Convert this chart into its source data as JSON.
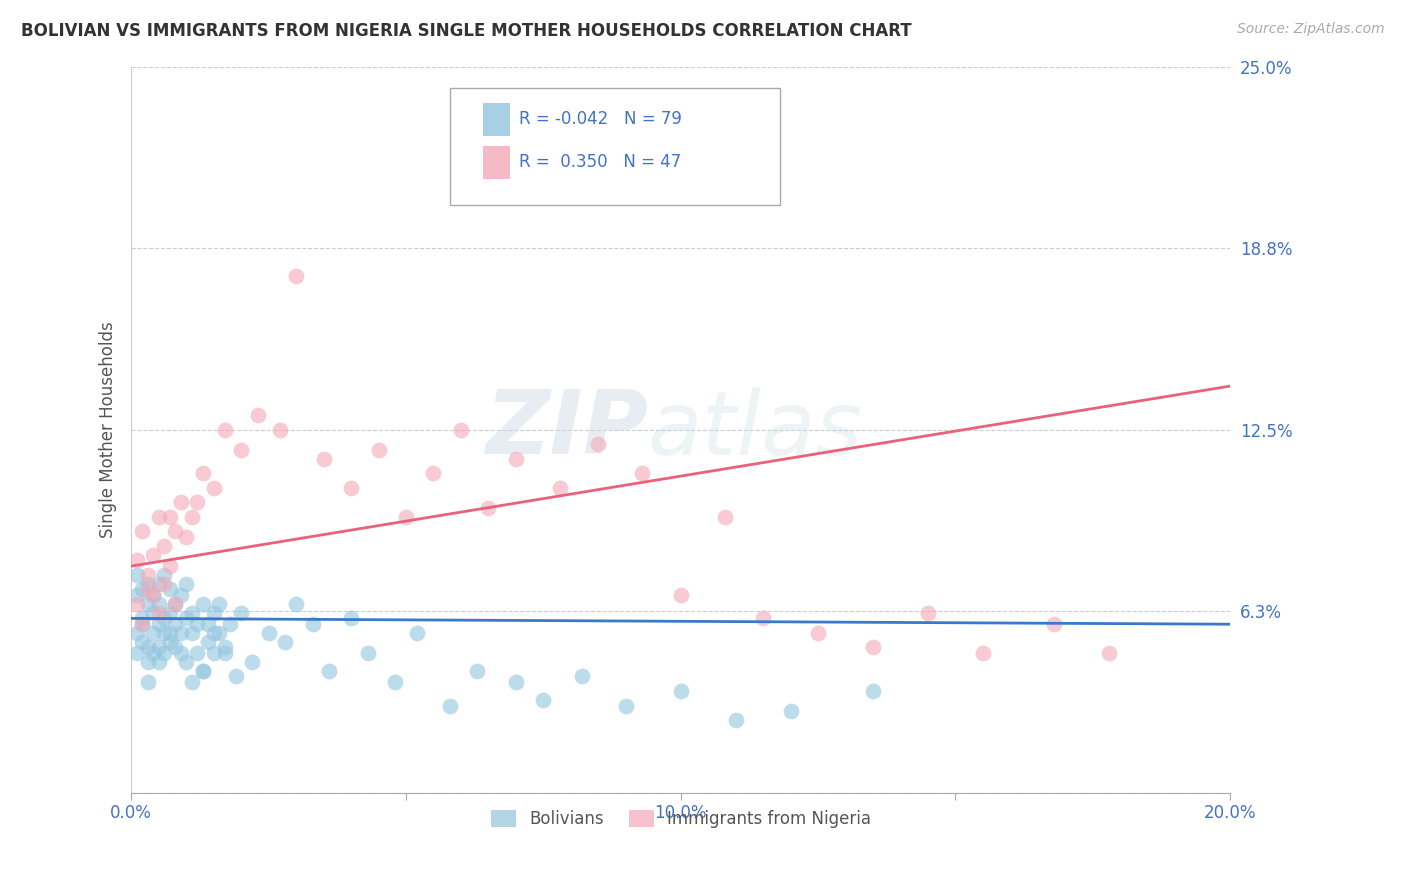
{
  "title": "BOLIVIAN VS IMMIGRANTS FROM NIGERIA SINGLE MOTHER HOUSEHOLDS CORRELATION CHART",
  "source": "Source: ZipAtlas.com",
  "ylabel": "Single Mother Households",
  "xlim": [
    0.0,
    0.2
  ],
  "ylim": [
    0.0,
    0.25
  ],
  "yticks": [
    0.0,
    0.0625,
    0.125,
    0.1875,
    0.25
  ],
  "ytick_labels": [
    "",
    "6.3%",
    "12.5%",
    "18.8%",
    "25.0%"
  ],
  "xticks": [
    0.0,
    0.05,
    0.1,
    0.15,
    0.2
  ],
  "xtick_labels": [
    "0.0%",
    "",
    "10.0%",
    "",
    "20.0%"
  ],
  "bolivians_R": -0.042,
  "bolivians_N": 79,
  "nigeria_R": 0.35,
  "nigeria_N": 47,
  "blue_color": "#92c5de",
  "pink_color": "#f4a9b8",
  "blue_line_color": "#3a78c9",
  "pink_line_color": "#e8627a",
  "watermark": "ZIPatlas",
  "legend_label_blue": "Bolivians",
  "legend_label_pink": "Immigrants from Nigeria",
  "blue_line_start_y": 0.06,
  "blue_line_end_y": 0.058,
  "pink_line_start_y": 0.078,
  "pink_line_end_y": 0.14,
  "bolivians_x": [
    0.001,
    0.001,
    0.001,
    0.001,
    0.002,
    0.002,
    0.002,
    0.002,
    0.003,
    0.003,
    0.003,
    0.003,
    0.004,
    0.004,
    0.004,
    0.004,
    0.005,
    0.005,
    0.005,
    0.005,
    0.006,
    0.006,
    0.006,
    0.006,
    0.007,
    0.007,
    0.007,
    0.008,
    0.008,
    0.008,
    0.009,
    0.009,
    0.01,
    0.01,
    0.01,
    0.011,
    0.011,
    0.012,
    0.012,
    0.013,
    0.013,
    0.014,
    0.014,
    0.015,
    0.015,
    0.016,
    0.016,
    0.017,
    0.018,
    0.02,
    0.022,
    0.025,
    0.028,
    0.03,
    0.033,
    0.036,
    0.04,
    0.043,
    0.048,
    0.052,
    0.058,
    0.063,
    0.07,
    0.075,
    0.082,
    0.09,
    0.1,
    0.11,
    0.12,
    0.135,
    0.003,
    0.005,
    0.007,
    0.009,
    0.011,
    0.013,
    0.015,
    0.017,
    0.019
  ],
  "bolivians_y": [
    0.068,
    0.055,
    0.075,
    0.048,
    0.06,
    0.052,
    0.07,
    0.058,
    0.065,
    0.05,
    0.072,
    0.045,
    0.062,
    0.048,
    0.068,
    0.055,
    0.058,
    0.072,
    0.05,
    0.065,
    0.06,
    0.048,
    0.075,
    0.055,
    0.062,
    0.055,
    0.07,
    0.058,
    0.065,
    0.05,
    0.055,
    0.068,
    0.06,
    0.045,
    0.072,
    0.055,
    0.062,
    0.058,
    0.048,
    0.065,
    0.042,
    0.058,
    0.052,
    0.062,
    0.048,
    0.055,
    0.065,
    0.05,
    0.058,
    0.062,
    0.045,
    0.055,
    0.052,
    0.065,
    0.058,
    0.042,
    0.06,
    0.048,
    0.038,
    0.055,
    0.03,
    0.042,
    0.038,
    0.032,
    0.04,
    0.03,
    0.035,
    0.025,
    0.028,
    0.035,
    0.038,
    0.045,
    0.052,
    0.048,
    0.038,
    0.042,
    0.055,
    0.048,
    0.04
  ],
  "nigeria_x": [
    0.001,
    0.001,
    0.002,
    0.002,
    0.003,
    0.003,
    0.004,
    0.004,
    0.005,
    0.005,
    0.006,
    0.006,
    0.007,
    0.007,
    0.008,
    0.008,
    0.009,
    0.01,
    0.011,
    0.012,
    0.013,
    0.015,
    0.017,
    0.02,
    0.023,
    0.027,
    0.03,
    0.035,
    0.04,
    0.045,
    0.05,
    0.055,
    0.06,
    0.065,
    0.07,
    0.078,
    0.085,
    0.093,
    0.1,
    0.108,
    0.115,
    0.125,
    0.135,
    0.145,
    0.155,
    0.168,
    0.178
  ],
  "nigeria_y": [
    0.065,
    0.08,
    0.058,
    0.09,
    0.07,
    0.075,
    0.082,
    0.068,
    0.095,
    0.062,
    0.085,
    0.072,
    0.095,
    0.078,
    0.09,
    0.065,
    0.1,
    0.088,
    0.095,
    0.1,
    0.11,
    0.105,
    0.125,
    0.118,
    0.13,
    0.125,
    0.178,
    0.115,
    0.105,
    0.118,
    0.095,
    0.11,
    0.125,
    0.098,
    0.115,
    0.105,
    0.12,
    0.11,
    0.068,
    0.095,
    0.06,
    0.055,
    0.05,
    0.062,
    0.048,
    0.058,
    0.048
  ]
}
